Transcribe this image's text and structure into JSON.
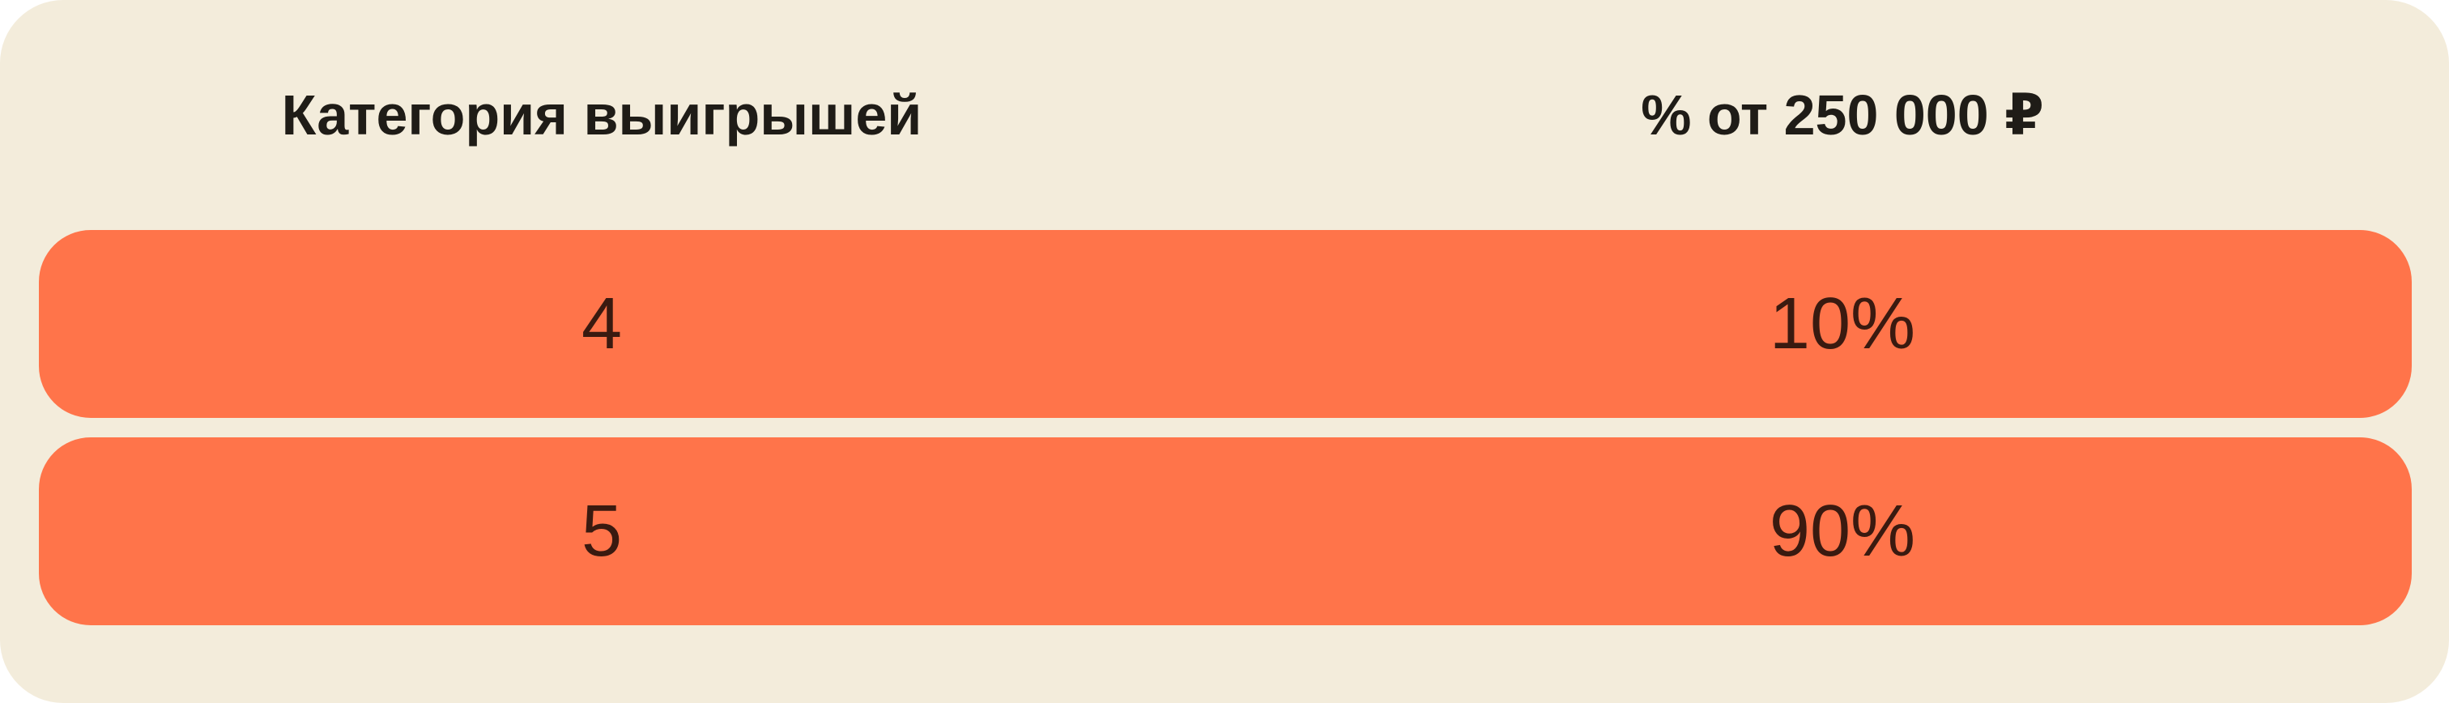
{
  "table": {
    "headers": [
      "Категория выигрышей",
      "% от 250 000 ₽"
    ],
    "rows": [
      {
        "category": "4",
        "percent": "10%"
      },
      {
        "category": "5",
        "percent": "90%"
      }
    ]
  },
  "colors": {
    "background": "#f3ecdb",
    "row": "#ff744a",
    "text": "#3a1a10"
  }
}
